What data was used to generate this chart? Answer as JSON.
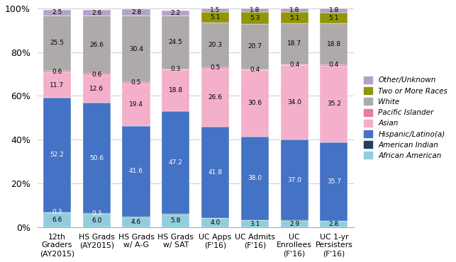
{
  "categories": [
    "12th\nGraders\n(AY2015)",
    "HS Grads\n(AY2015)",
    "HS Grads\nw/ A-G",
    "HS Grads\nw/ SAT",
    "UC Apps\n(F'16)",
    "UC Admits\n(F'16)",
    "UC\nEnrollees\n(F'16)",
    "UC 1-yr\nPersisters\n(F'16)"
  ],
  "series": [
    {
      "name": "African American",
      "color": "#92CDDC",
      "values": [
        6.6,
        6.0,
        4.6,
        5.8,
        4.0,
        3.1,
        2.9,
        2.8
      ]
    },
    {
      "name": "American Indian",
      "color": "#243F60",
      "values": [
        0.3,
        0.3,
        0.2,
        0.2,
        0.2,
        0.2,
        0.2,
        0.2
      ]
    },
    {
      "name": "Hispanic/Latino(a)",
      "color": "#4472C4",
      "values": [
        52.2,
        50.6,
        41.6,
        47.2,
        41.8,
        38.0,
        37.0,
        35.7
      ]
    },
    {
      "name": "Asian",
      "color": "#F4AFCB",
      "values": [
        11.7,
        12.6,
        19.4,
        18.8,
        26.6,
        30.6,
        34.0,
        35.2
      ]
    },
    {
      "name": "Pacific Islander",
      "color": "#E879A0",
      "values": [
        0.6,
        0.6,
        0.5,
        0.3,
        0.5,
        0.4,
        0.4,
        0.4
      ]
    },
    {
      "name": "White",
      "color": "#AEAAAA",
      "values": [
        25.5,
        26.6,
        30.4,
        24.5,
        20.3,
        20.7,
        18.7,
        18.8
      ]
    },
    {
      "name": "Two or More Races",
      "color": "#92950A",
      "values": [
        0.0,
        0.0,
        0.0,
        0.0,
        5.1,
        5.3,
        5.1,
        5.1
      ]
    },
    {
      "name": "Other/Unknown",
      "color": "#B3A2C7",
      "values": [
        2.5,
        2.6,
        2.8,
        2.2,
        1.5,
        1.8,
        1.8,
        1.8
      ]
    }
  ],
  "show_label_min": 0.25,
  "ylim": [
    0,
    100
  ],
  "yticks": [
    0,
    20,
    40,
    60,
    80,
    100
  ],
  "ytick_labels": [
    "0%",
    "20%",
    "40%",
    "60%",
    "80%",
    "100%"
  ],
  "background_color": "#FFFFFF",
  "legend_order": [
    "Other/Unknown",
    "Two or More Races",
    "White",
    "Pacific Islander",
    "Asian",
    "Hispanic/Latino(a)",
    "American Indian",
    "African American"
  ]
}
